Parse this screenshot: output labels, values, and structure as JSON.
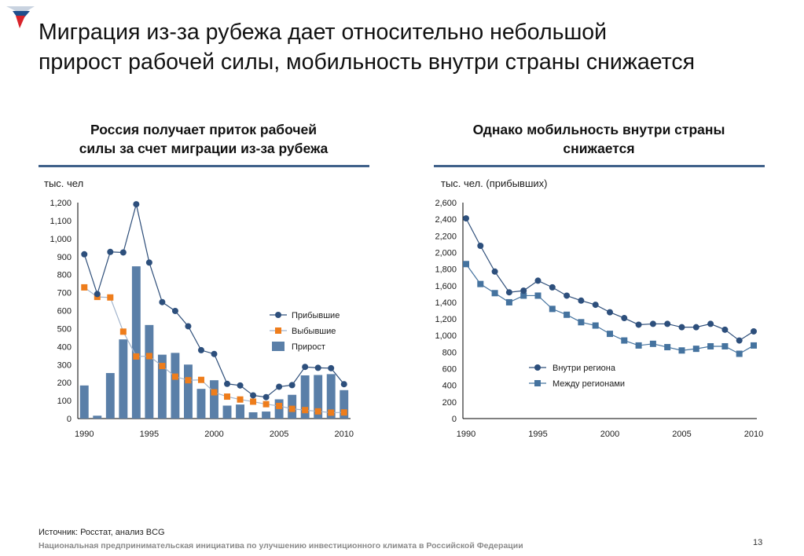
{
  "header": {
    "title_line1": "Миграция из-за рубежа дает относительно небольшой",
    "title_line2": "прирост рабочей силы, мобильность внутри страны снижается"
  },
  "left_panel": {
    "subtitle_line1": "Россия получает приток рабочей",
    "subtitle_line2": "силы за счет миграции из-за рубежа"
  },
  "right_panel": {
    "subtitle_line1": "Однако мобильность внутри страны",
    "subtitle_line2": "снижается"
  },
  "footer": {
    "source": "Источник: Росстат, анализ BCG",
    "org": "Национальная предпринимательская инициатива по улучшению инвестиционного климата в Российской Федерации",
    "page": "13"
  },
  "colors": {
    "accent": "#40618a",
    "bar": "#5a7fa8",
    "line_dark": "#2f4f7a",
    "marker_dark": "#2d4f7c",
    "marker_orange": "#ee7d1c",
    "line_orange": "#a2b4cc",
    "marker_square_blue": "#45739f",
    "line_right_2": "#45739f"
  },
  "chart_data": [
    {
      "type": "bar",
      "ylabel": "тыс. чел",
      "ylim": [
        0,
        1200
      ],
      "yticks": [
        0,
        100,
        200,
        300,
        400,
        500,
        600,
        700,
        800,
        900,
        1000,
        1100,
        1200
      ],
      "ytick_labels": [
        "0",
        "100",
        "200",
        "300",
        "400",
        "500",
        "600",
        "700",
        "800",
        "900",
        "1,000",
        "1,100",
        "1,200"
      ],
      "x": [
        1990,
        1991,
        1992,
        1993,
        1994,
        1995,
        1996,
        1997,
        1998,
        1999,
        2000,
        2001,
        2002,
        2003,
        2004,
        2005,
        2006,
        2007,
        2008,
        2009,
        2010
      ],
      "xticks": [
        1990,
        1995,
        2000,
        2005,
        2010
      ],
      "legend_position": "right",
      "series": [
        {
          "name": "Прибывшие",
          "kind": "line",
          "values": [
            913,
            692,
            926,
            923,
            1191,
            867,
            647,
            598,
            513,
            380,
            359,
            193,
            184,
            129,
            119,
            177,
            186,
            287,
            282,
            280,
            191
          ]
        },
        {
          "name": "Выбывшие",
          "kind": "line",
          "values": [
            729,
            676,
            673,
            483,
            345,
            347,
            292,
            233,
            213,
            215,
            146,
            122,
            106,
            94,
            80,
            70,
            54,
            47,
            40,
            33,
            34
          ]
        },
        {
          "name": "Прирост",
          "kind": "bar",
          "values": [
            184,
            16,
            253,
            440,
            846,
            520,
            355,
            365,
            300,
            165,
            213,
            72,
            78,
            35,
            39,
            107,
            132,
            240,
            242,
            247,
            158
          ]
        }
      ]
    },
    {
      "type": "line",
      "ylabel": "тыс. чел. (прибывших)",
      "ylim": [
        0,
        2600
      ],
      "yticks": [
        0,
        200,
        400,
        600,
        800,
        1000,
        1200,
        1400,
        1600,
        1800,
        2000,
        2200,
        2400,
        2600
      ],
      "ytick_labels": [
        "0",
        "200",
        "400",
        "600",
        "800",
        "1,000",
        "1,200",
        "1,400",
        "1,600",
        "1,800",
        "2,000",
        "2,200",
        "2,400",
        "2,600"
      ],
      "x": [
        1990,
        1991,
        1992,
        1993,
        1994,
        1995,
        1996,
        1997,
        1998,
        1999,
        2000,
        2001,
        2002,
        2003,
        2004,
        2005,
        2006,
        2007,
        2008,
        2009,
        2010
      ],
      "xticks": [
        1990,
        1995,
        2000,
        2005,
        2010
      ],
      "legend_position": "right",
      "series": [
        {
          "name": "Внутри региона",
          "marker": "circle",
          "values": [
            2410,
            2080,
            1770,
            1520,
            1540,
            1660,
            1580,
            1480,
            1420,
            1370,
            1280,
            1210,
            1130,
            1140,
            1140,
            1100,
            1100,
            1140,
            1070,
            940,
            1050
          ]
        },
        {
          "name": "Между регионами",
          "marker": "square",
          "values": [
            1860,
            1620,
            1510,
            1400,
            1480,
            1480,
            1320,
            1250,
            1160,
            1120,
            1020,
            940,
            880,
            900,
            860,
            820,
            840,
            870,
            870,
            780,
            880
          ]
        }
      ]
    }
  ]
}
